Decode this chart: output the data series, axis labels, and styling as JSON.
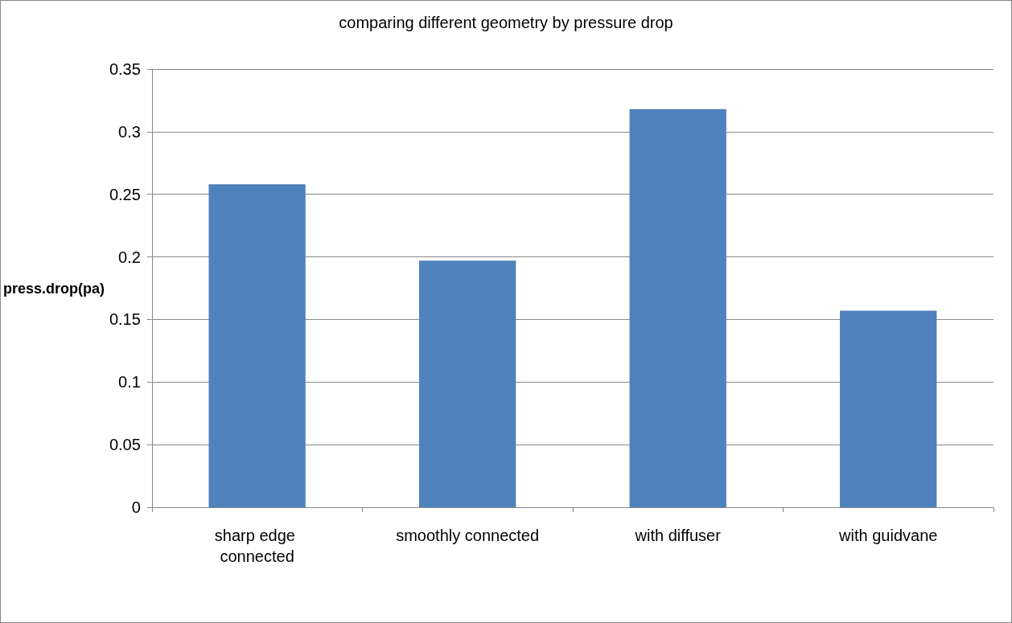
{
  "chart_data": {
    "type": "bar",
    "title": "comparing different geometry by pressure drop",
    "ylabel": "press.drop(pa)",
    "categories": [
      "sharp edge connected",
      "smoothly connected",
      "with diffuser",
      "with guidvane"
    ],
    "values": [
      0.258,
      0.197,
      0.318,
      0.157
    ],
    "color": "#4f81bd",
    "ylim": [
      0,
      0.35
    ],
    "yticks": [
      0,
      0.05,
      0.1,
      0.15,
      0.2,
      0.25,
      0.3,
      0.35
    ],
    "grid": "y"
  }
}
